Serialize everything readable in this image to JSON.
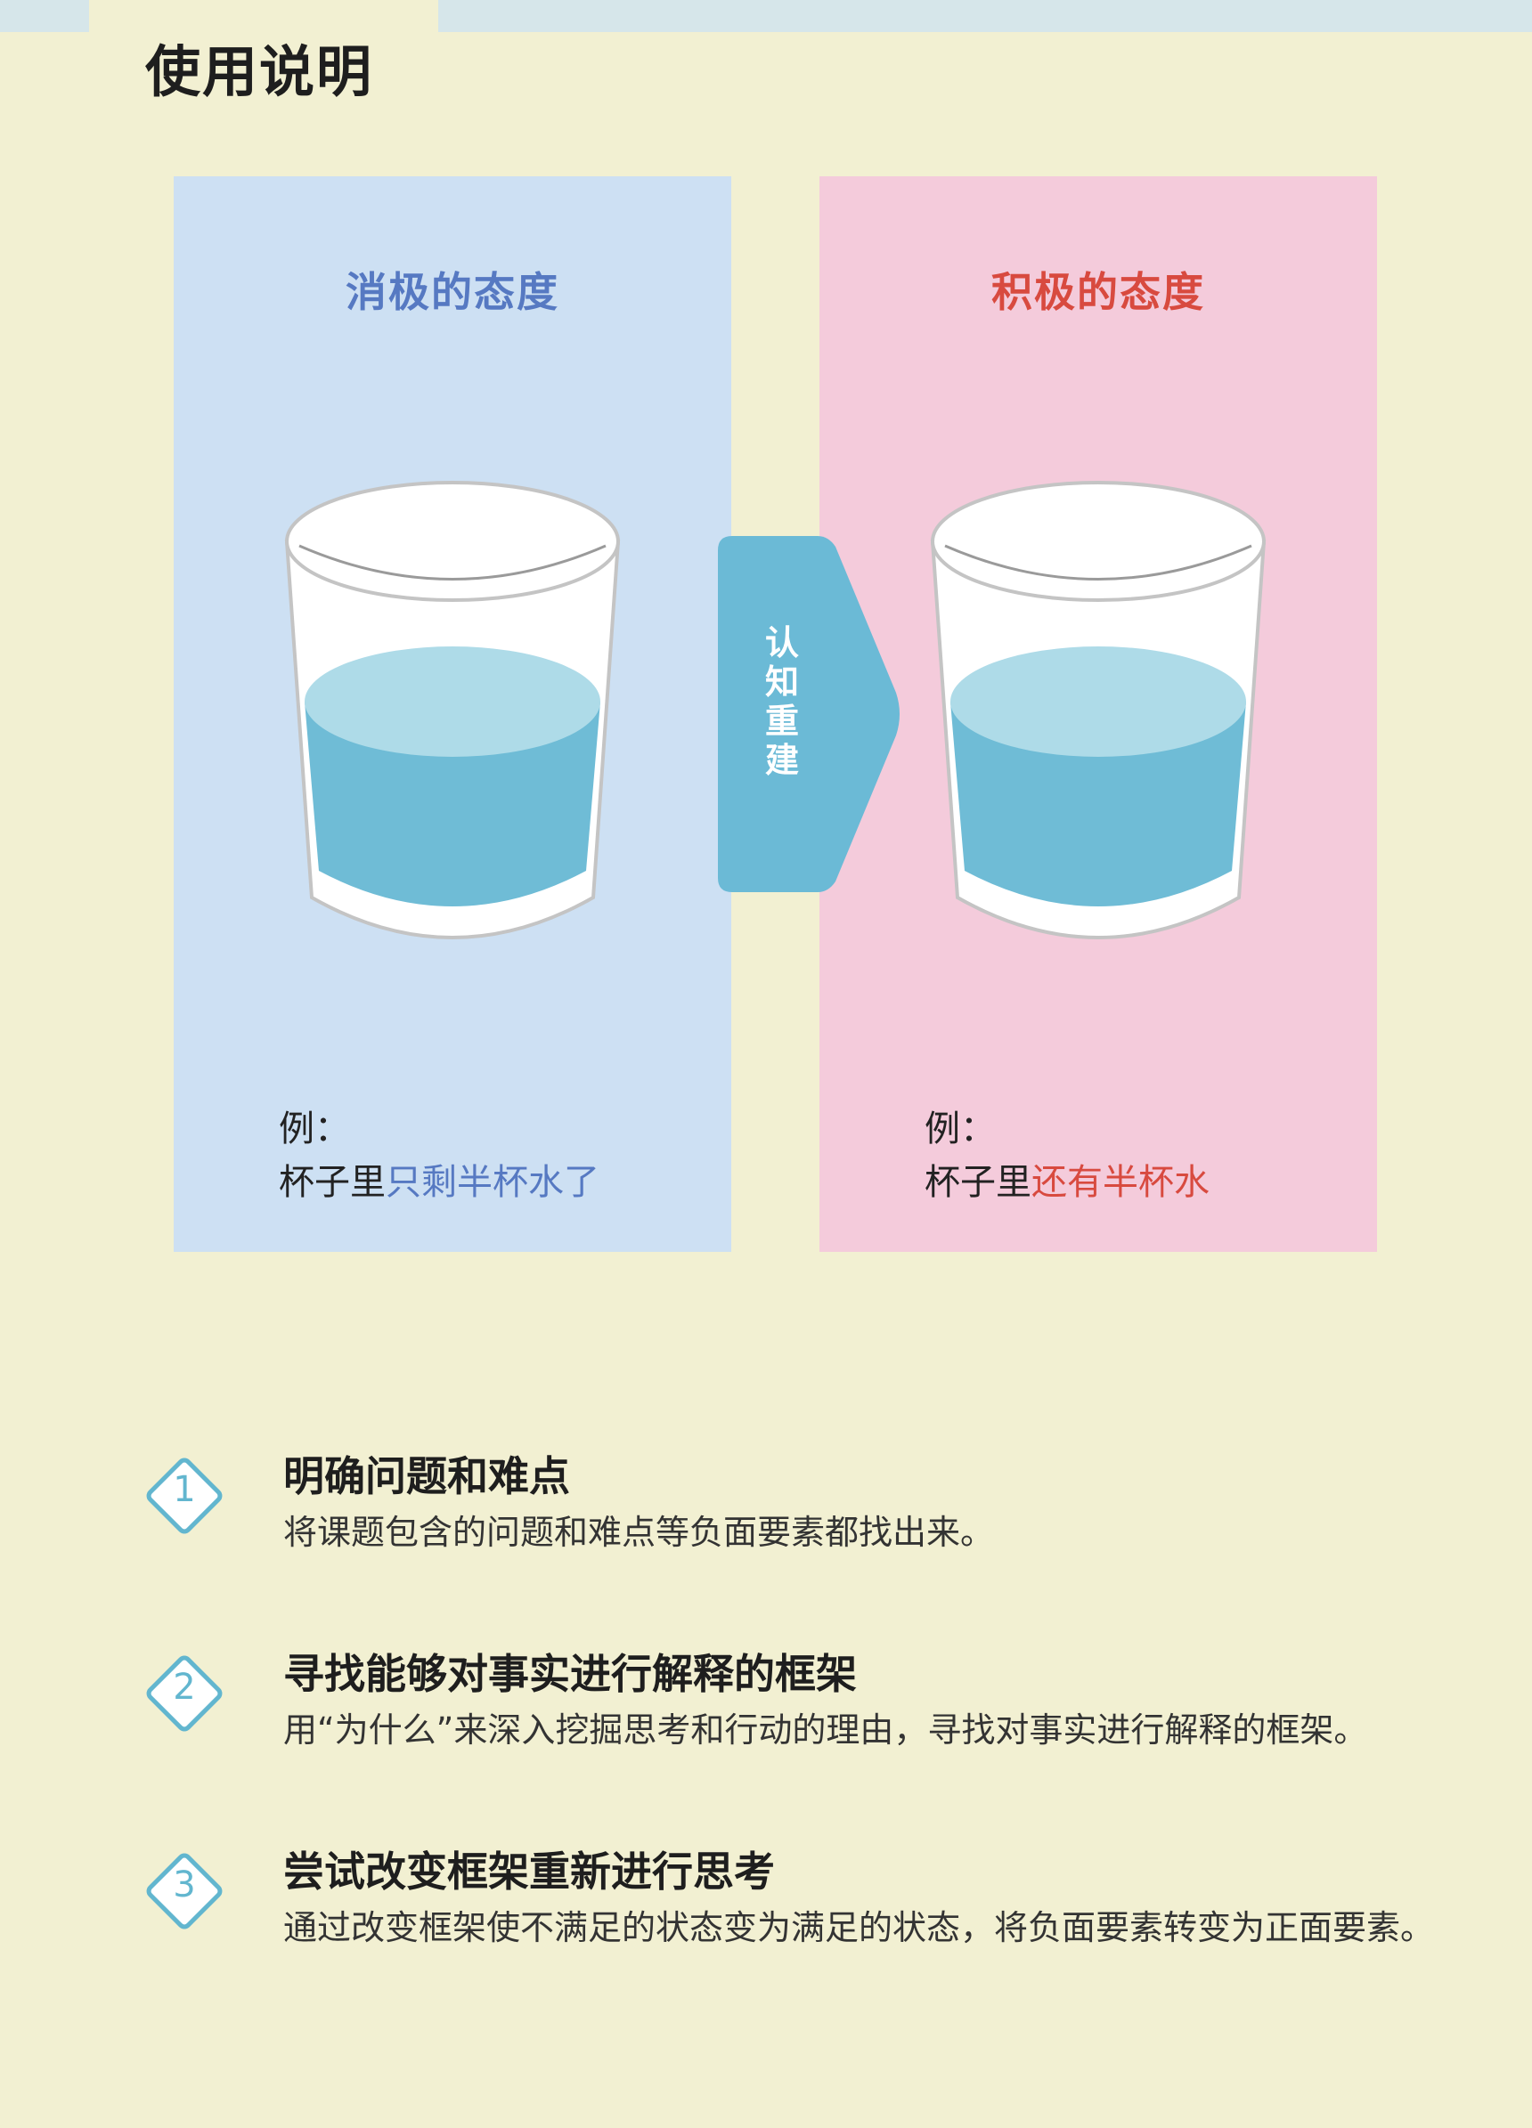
{
  "page": {
    "title": "使用说明"
  },
  "negative": {
    "heading": "消极的态度",
    "example_label": "例：",
    "example_prefix": "杯子里",
    "example_highlight": "只剩半杯水了",
    "highlight_color": "#5679c2",
    "panel_color": "#cde0f3"
  },
  "positive": {
    "heading": "积极的态度",
    "example_label": "例：",
    "example_prefix": "杯子里",
    "example_highlight": "还有半杯水",
    "highlight_color": "#d84a3f",
    "panel_color": "#f4cbdb"
  },
  "reframe": {
    "chars": [
      "认",
      "知",
      "重",
      "建"
    ],
    "color": "#6bbad6"
  },
  "steps": [
    {
      "number": "1",
      "title": "明确问题和难点",
      "desc": "将课题包含的问题和难点等负面要素都找出来。"
    },
    {
      "number": "2",
      "title": "寻找能够对事实进行解释的框架",
      "desc": "用“为什么”来深入挖掘思考和行动的理由，寻找对事实进行解释的框架。"
    },
    {
      "number": "3",
      "title": "尝试改变框架重新进行思考",
      "desc": "通过改变框架使不满足的状态变为满足的状态，将负面要素转变为正面要素。"
    }
  ],
  "icons": {
    "glass": "glass-of-water-icon",
    "arrow": "arrow-right-icon",
    "badge": "diamond-number-icon"
  }
}
